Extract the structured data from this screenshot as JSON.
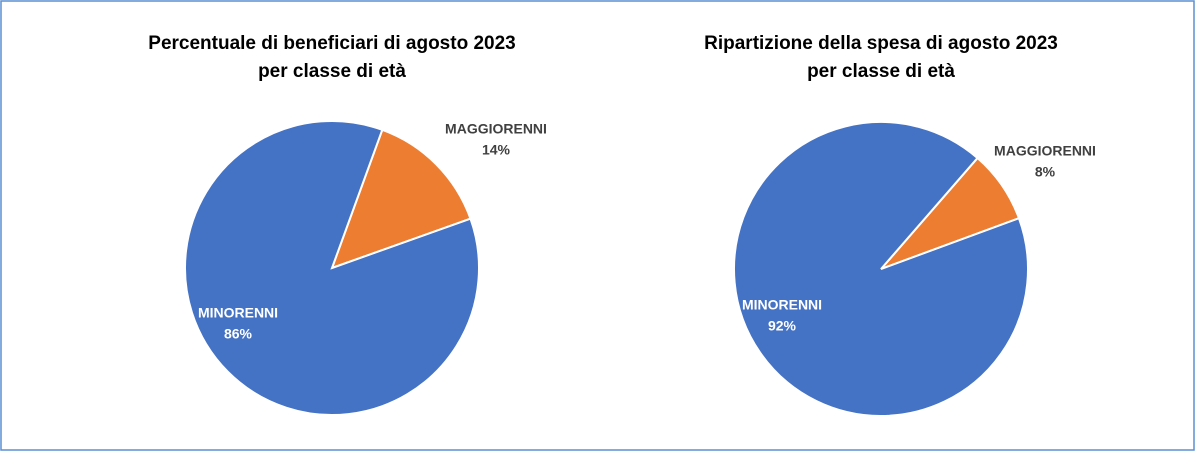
{
  "chart_data": [
    {
      "type": "pie",
      "title": [
        "Percentuale di beneficiari di agosto 2023",
        "per classe di età"
      ],
      "categories": [
        "MAGGIORENNI",
        "MINORENNI"
      ],
      "values": [
        14,
        86
      ],
      "value_labels": [
        "14%",
        "86%"
      ],
      "colors": [
        "#ed7d31",
        "#4472c4"
      ]
    },
    {
      "type": "pie",
      "title": [
        "Ripartizione della spesa di agosto 2023",
        "per classe di età"
      ],
      "categories": [
        "MAGGIORENNI",
        "MINORENNI"
      ],
      "values": [
        8,
        92
      ],
      "value_labels": [
        "8%",
        "92%"
      ],
      "colors": [
        "#ed7d31",
        "#4472c4"
      ]
    }
  ]
}
